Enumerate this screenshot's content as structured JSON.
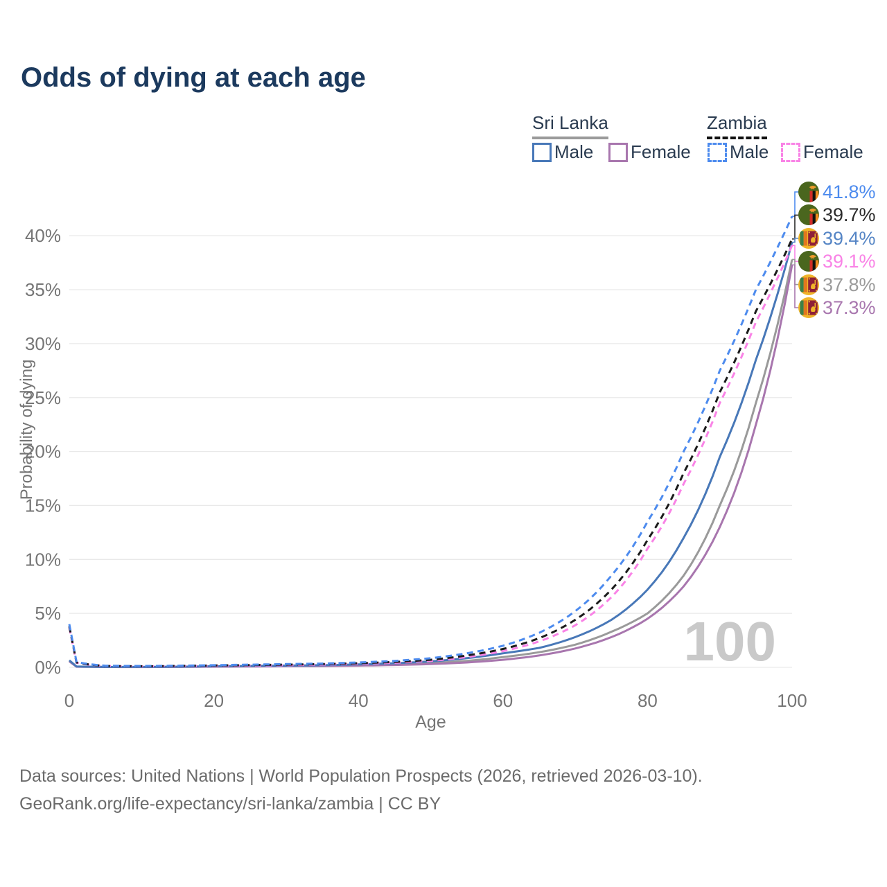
{
  "title": "Odds of dying at each age",
  "legend": {
    "groups": [
      {
        "name": "Sri Lanka",
        "line_style": "solid",
        "underline_color": "#9a9a9a",
        "items": [
          {
            "label": "Male",
            "color": "#4878b8",
            "dashed": false
          },
          {
            "label": "Female",
            "color": "#a876ae",
            "dashed": false
          }
        ]
      },
      {
        "name": "Zambia",
        "line_style": "dashed",
        "underline_color": "#111111",
        "items": [
          {
            "label": "Male",
            "color": "#4d8bee",
            "dashed": true
          },
          {
            "label": "Female",
            "color": "#f983e6",
            "dashed": true
          }
        ]
      }
    ]
  },
  "chart_data": {
    "type": "line",
    "title": "Odds of dying at each age",
    "xlabel": "Age",
    "ylabel": "Probability of dying",
    "xlim": [
      0,
      100
    ],
    "ylim": [
      0,
      43.5
    ],
    "xticks": [
      0,
      20,
      40,
      60,
      80,
      100
    ],
    "yticks": [
      0,
      5,
      10,
      15,
      20,
      25,
      30,
      35,
      40
    ],
    "ytick_suffix": "%",
    "grid": true,
    "legend_position": "top-right",
    "watermark": "100",
    "ages": [
      0,
      1,
      5,
      10,
      15,
      20,
      25,
      30,
      35,
      40,
      45,
      50,
      55,
      60,
      65,
      70,
      75,
      80,
      85,
      90,
      95,
      100
    ],
    "series": [
      {
        "name": "Sri Lanka Male",
        "country": "srilanka",
        "sex": "male",
        "style": "solid",
        "color": "#4878b8",
        "values": [
          0.65,
          0.08,
          0.04,
          0.04,
          0.06,
          0.1,
          0.13,
          0.16,
          0.2,
          0.27,
          0.38,
          0.55,
          0.85,
          1.3,
          1.8,
          2.8,
          4.4,
          7.2,
          12.0,
          19.5,
          28.5,
          39.4
        ]
      },
      {
        "name": "Sri Lanka Female",
        "country": "srilanka",
        "sex": "female",
        "style": "solid",
        "color": "#a876ae",
        "values": [
          0.55,
          0.06,
          0.03,
          0.025,
          0.04,
          0.06,
          0.08,
          0.1,
          0.12,
          0.16,
          0.22,
          0.3,
          0.45,
          0.7,
          1.1,
          1.75,
          2.8,
          4.5,
          7.5,
          13.0,
          22.5,
          37.3
        ]
      },
      {
        "name": "Sri Lanka Both sexes",
        "country": "srilanka",
        "sex": "both",
        "style": "solid",
        "color": "#9a9a9a",
        "values": [
          0.6,
          0.07,
          0.035,
          0.03,
          0.05,
          0.08,
          0.1,
          0.12,
          0.15,
          0.2,
          0.28,
          0.4,
          0.6,
          0.95,
          1.4,
          2.1,
          3.3,
          5.0,
          8.5,
          15.0,
          24.5,
          37.8
        ]
      },
      {
        "name": "Zambia Male",
        "country": "zambia",
        "sex": "male",
        "style": "dashed",
        "color": "#4d8bee",
        "values": [
          4.0,
          0.5,
          0.15,
          0.12,
          0.15,
          0.2,
          0.25,
          0.3,
          0.35,
          0.45,
          0.6,
          0.85,
          1.3,
          2.0,
          3.2,
          5.2,
          8.5,
          13.5,
          20.0,
          27.5,
          35.0,
          41.8
        ]
      },
      {
        "name": "Zambia Female",
        "country": "zambia",
        "sex": "female",
        "style": "dashed",
        "color": "#f983e6",
        "values": [
          3.7,
          0.42,
          0.12,
          0.09,
          0.11,
          0.14,
          0.17,
          0.2,
          0.25,
          0.32,
          0.42,
          0.6,
          0.95,
          1.5,
          2.4,
          3.9,
          6.5,
          11.0,
          17.0,
          24.5,
          32.0,
          39.1
        ]
      },
      {
        "name": "Zambia Both sexes",
        "country": "zambia",
        "sex": "both",
        "style": "dashed",
        "color": "#1b1b1b",
        "values": [
          3.8,
          0.45,
          0.13,
          0.1,
          0.13,
          0.17,
          0.21,
          0.25,
          0.3,
          0.38,
          0.5,
          0.7,
          1.1,
          1.7,
          2.7,
          4.4,
          7.2,
          11.8,
          18.0,
          25.5,
          33.0,
          39.7
        ]
      }
    ],
    "end_labels": [
      {
        "text": "41.8%",
        "value": 41.8,
        "country": "zambia",
        "color": "#4d8bee"
      },
      {
        "text": "39.7%",
        "value": 39.7,
        "country": "zambia",
        "color": "#2a2a2a"
      },
      {
        "text": "39.4%",
        "value": 39.4,
        "country": "srilanka",
        "color": "#5585c5"
      },
      {
        "text": "39.1%",
        "value": 39.1,
        "country": "zambia",
        "color": "#f983e6"
      },
      {
        "text": "37.8%",
        "value": 37.8,
        "country": "srilanka",
        "color": "#9a9a9a"
      },
      {
        "text": "37.3%",
        "value": 37.3,
        "country": "srilanka",
        "color": "#a876ae"
      }
    ]
  },
  "footer": {
    "line1": "Data sources: United Nations | World Population Prospects (2026, retrieved 2026-03-10).",
    "line2": "GeoRank.org/life-expectancy/sri-lanka/zambia | CC BY"
  }
}
